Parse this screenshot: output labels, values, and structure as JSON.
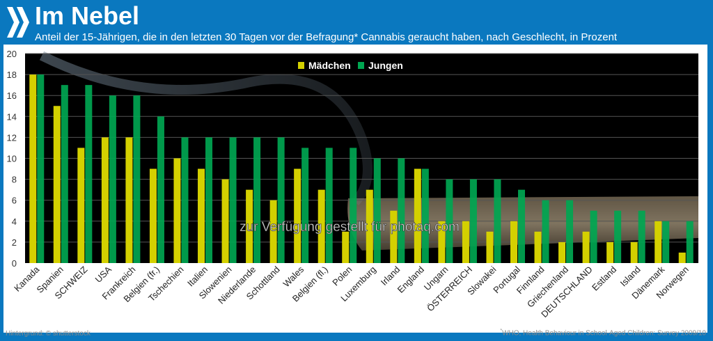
{
  "header": {
    "title": "Im Nebel",
    "subtitle": "Anteil der 15-Jährigen, die in den letzten 30 Tagen vor der Befragung* Cannabis geraucht haben, nach Geschlecht, in Prozent"
  },
  "watermark": "zur Verfügung gestellt für photaq.com",
  "footer": {
    "credit": "Hintergrund: © shutterstock",
    "source_mark": "*",
    "source": "WHO, Health Behaviour in School-Aged Children: Survey 2009/10"
  },
  "chart_data": {
    "type": "bar",
    "title": "Im Nebel",
    "xlabel": "",
    "ylabel": "Prozent",
    "ylim": [
      0,
      20
    ],
    "yticks": [
      0,
      2,
      4,
      6,
      8,
      10,
      12,
      14,
      16,
      18,
      20
    ],
    "grid": true,
    "legend_position": "top-center",
    "categories": [
      "Kanada",
      "Spanien",
      "SCHWEIZ",
      "USA",
      "Frankreich",
      "Belgien (fr.)",
      "Tschechien",
      "Italien",
      "Slowenien",
      "Niederlande",
      "Schottland",
      "Wales",
      "Belgien (fl.)",
      "Polen",
      "Luxemburg",
      "Irland",
      "England",
      "Ungarn",
      "ÖSTERREICH",
      "Slowakei",
      "Portugal",
      "Finnland",
      "Griechenland",
      "DEUTSCHLAND",
      "Estland",
      "Island",
      "Dänemark",
      "Norwegen"
    ],
    "series": [
      {
        "name": "Mädchen",
        "color": "#d4d000",
        "values": [
          18,
          15,
          11,
          12,
          12,
          9,
          10,
          9,
          8,
          7,
          6,
          9,
          7,
          3,
          7,
          5,
          9,
          4,
          4,
          3,
          4,
          3,
          2,
          3,
          2,
          2,
          4,
          1
        ]
      },
      {
        "name": "Jungen",
        "color": "#00a651",
        "values": [
          18,
          17,
          17,
          16,
          16,
          14,
          12,
          12,
          12,
          12,
          12,
          11,
          11,
          11,
          10,
          10,
          9,
          8,
          8,
          8,
          7,
          6,
          6,
          5,
          5,
          5,
          4,
          4
        ]
      }
    ]
  }
}
